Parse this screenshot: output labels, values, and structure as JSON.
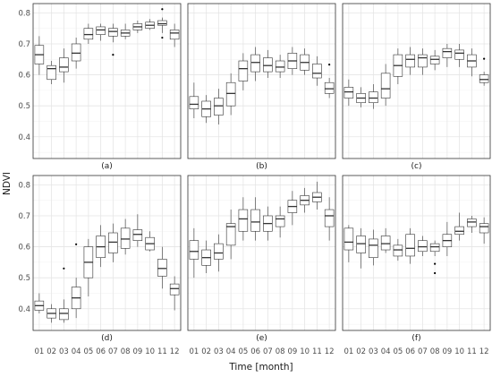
{
  "chart_data": {
    "type": "boxplot",
    "ylabel": "NDVI",
    "xlabel": "Time [month]",
    "categories": [
      "01",
      "02",
      "03",
      "04",
      "05",
      "06",
      "07",
      "08",
      "09",
      "10",
      "11",
      "12"
    ],
    "yticks": [
      0.4,
      0.5,
      0.6,
      0.7,
      0.8
    ],
    "ylim": [
      0.33,
      0.83
    ],
    "grid": true,
    "colors": {
      "panel_border": "#333333",
      "grid_major": "#e5e5e5",
      "grid_minor": "#f2f2f2",
      "box": "#333333"
    },
    "panels": [
      {
        "label": "(a)",
        "boxes": [
          {
            "min": 0.6,
            "q1": 0.635,
            "median": 0.665,
            "q3": 0.695,
            "max": 0.725,
            "outliers": []
          },
          {
            "min": 0.57,
            "q1": 0.585,
            "median": 0.62,
            "q3": 0.63,
            "max": 0.645,
            "outliers": []
          },
          {
            "min": 0.575,
            "q1": 0.61,
            "median": 0.625,
            "q3": 0.655,
            "max": 0.685,
            "outliers": []
          },
          {
            "min": 0.62,
            "q1": 0.645,
            "median": 0.67,
            "q3": 0.7,
            "max": 0.72,
            "outliers": []
          },
          {
            "min": 0.7,
            "q1": 0.715,
            "median": 0.73,
            "q3": 0.75,
            "max": 0.765,
            "outliers": []
          },
          {
            "min": 0.71,
            "q1": 0.73,
            "median": 0.745,
            "q3": 0.755,
            "max": 0.765,
            "outliers": []
          },
          {
            "min": 0.705,
            "q1": 0.725,
            "median": 0.74,
            "q3": 0.75,
            "max": 0.765,
            "outliers": [
              0.665
            ]
          },
          {
            "min": 0.715,
            "q1": 0.725,
            "median": 0.735,
            "q3": 0.745,
            "max": 0.765,
            "outliers": []
          },
          {
            "min": 0.735,
            "q1": 0.745,
            "median": 0.755,
            "q3": 0.765,
            "max": 0.775,
            "outliers": []
          },
          {
            "min": 0.745,
            "q1": 0.75,
            "median": 0.76,
            "q3": 0.77,
            "max": 0.78,
            "outliers": []
          },
          {
            "min": 0.735,
            "q1": 0.76,
            "median": 0.765,
            "q3": 0.775,
            "max": 0.785,
            "outliers": [
              0.812,
              0.72
            ]
          },
          {
            "min": 0.69,
            "q1": 0.715,
            "median": 0.735,
            "q3": 0.745,
            "max": 0.765,
            "outliers": []
          }
        ]
      },
      {
        "label": "(b)",
        "boxes": [
          {
            "min": 0.46,
            "q1": 0.49,
            "median": 0.505,
            "q3": 0.53,
            "max": 0.575,
            "outliers": []
          },
          {
            "min": 0.445,
            "q1": 0.465,
            "median": 0.49,
            "q3": 0.515,
            "max": 0.535,
            "outliers": []
          },
          {
            "min": 0.44,
            "q1": 0.47,
            "median": 0.5,
            "q3": 0.525,
            "max": 0.555,
            "outliers": []
          },
          {
            "min": 0.47,
            "q1": 0.5,
            "median": 0.54,
            "q3": 0.575,
            "max": 0.605,
            "outliers": []
          },
          {
            "min": 0.55,
            "q1": 0.58,
            "median": 0.62,
            "q3": 0.645,
            "max": 0.67,
            "outliers": []
          },
          {
            "min": 0.58,
            "q1": 0.61,
            "median": 0.64,
            "q3": 0.665,
            "max": 0.69,
            "outliers": []
          },
          {
            "min": 0.59,
            "q1": 0.61,
            "median": 0.63,
            "q3": 0.655,
            "max": 0.68,
            "outliers": []
          },
          {
            "min": 0.59,
            "q1": 0.61,
            "median": 0.625,
            "q3": 0.645,
            "max": 0.665,
            "outliers": []
          },
          {
            "min": 0.6,
            "q1": 0.62,
            "median": 0.645,
            "q3": 0.67,
            "max": 0.69,
            "outliers": []
          },
          {
            "min": 0.6,
            "q1": 0.615,
            "median": 0.64,
            "q3": 0.665,
            "max": 0.685,
            "outliers": []
          },
          {
            "min": 0.565,
            "q1": 0.59,
            "median": 0.605,
            "q3": 0.635,
            "max": 0.66,
            "outliers": []
          },
          {
            "min": 0.525,
            "q1": 0.54,
            "median": 0.555,
            "q3": 0.575,
            "max": 0.59,
            "outliers": [
              0.633
            ]
          }
        ]
      },
      {
        "label": "(c)",
        "boxes": [
          {
            "min": 0.5,
            "q1": 0.525,
            "median": 0.545,
            "q3": 0.56,
            "max": 0.585,
            "outliers": []
          },
          {
            "min": 0.495,
            "q1": 0.51,
            "median": 0.525,
            "q3": 0.54,
            "max": 0.56,
            "outliers": []
          },
          {
            "min": 0.49,
            "q1": 0.51,
            "median": 0.525,
            "q3": 0.545,
            "max": 0.57,
            "outliers": []
          },
          {
            "min": 0.5,
            "q1": 0.525,
            "median": 0.555,
            "q3": 0.605,
            "max": 0.635,
            "outliers": []
          },
          {
            "min": 0.57,
            "q1": 0.595,
            "median": 0.63,
            "q3": 0.665,
            "max": 0.685,
            "outliers": []
          },
          {
            "min": 0.6,
            "q1": 0.625,
            "median": 0.65,
            "q3": 0.665,
            "max": 0.69,
            "outliers": []
          },
          {
            "min": 0.6,
            "q1": 0.625,
            "median": 0.655,
            "q3": 0.665,
            "max": 0.685,
            "outliers": []
          },
          {
            "min": 0.615,
            "q1": 0.635,
            "median": 0.65,
            "q3": 0.66,
            "max": 0.68,
            "outliers": []
          },
          {
            "min": 0.625,
            "q1": 0.655,
            "median": 0.675,
            "q3": 0.685,
            "max": 0.7,
            "outliers": []
          },
          {
            "min": 0.625,
            "q1": 0.65,
            "median": 0.67,
            "q3": 0.68,
            "max": 0.7,
            "outliers": []
          },
          {
            "min": 0.595,
            "q1": 0.625,
            "median": 0.645,
            "q3": 0.665,
            "max": 0.685,
            "outliers": []
          },
          {
            "min": 0.565,
            "q1": 0.575,
            "median": 0.585,
            "q3": 0.6,
            "max": 0.61,
            "outliers": [
              0.652
            ]
          }
        ]
      },
      {
        "label": "(d)",
        "boxes": [
          {
            "min": 0.385,
            "q1": 0.395,
            "median": 0.41,
            "q3": 0.425,
            "max": 0.45,
            "outliers": []
          },
          {
            "min": 0.355,
            "q1": 0.37,
            "median": 0.385,
            "q3": 0.4,
            "max": 0.415,
            "outliers": []
          },
          {
            "min": 0.355,
            "q1": 0.365,
            "median": 0.385,
            "q3": 0.4,
            "max": 0.43,
            "outliers": [
              0.53
            ]
          },
          {
            "min": 0.37,
            "q1": 0.4,
            "median": 0.435,
            "q3": 0.47,
            "max": 0.5,
            "outliers": [
              0.608
            ]
          },
          {
            "min": 0.44,
            "q1": 0.5,
            "median": 0.55,
            "q3": 0.6,
            "max": 0.625,
            "outliers": []
          },
          {
            "min": 0.535,
            "q1": 0.565,
            "median": 0.6,
            "q3": 0.635,
            "max": 0.67,
            "outliers": []
          },
          {
            "min": 0.55,
            "q1": 0.58,
            "median": 0.615,
            "q3": 0.645,
            "max": 0.675,
            "outliers": []
          },
          {
            "min": 0.575,
            "q1": 0.595,
            "median": 0.625,
            "q3": 0.66,
            "max": 0.69,
            "outliers": []
          },
          {
            "min": 0.6,
            "q1": 0.62,
            "median": 0.64,
            "q3": 0.655,
            "max": 0.705,
            "outliers": []
          },
          {
            "min": 0.585,
            "q1": 0.59,
            "median": 0.61,
            "q3": 0.63,
            "max": 0.65,
            "outliers": []
          },
          {
            "min": 0.465,
            "q1": 0.505,
            "median": 0.53,
            "q3": 0.56,
            "max": 0.6,
            "outliers": []
          },
          {
            "min": 0.395,
            "q1": 0.445,
            "median": 0.465,
            "q3": 0.48,
            "max": 0.505,
            "outliers": []
          }
        ]
      },
      {
        "label": "(e)",
        "boxes": [
          {
            "min": 0.5,
            "q1": 0.56,
            "median": 0.585,
            "q3": 0.62,
            "max": 0.66,
            "outliers": []
          },
          {
            "min": 0.515,
            "q1": 0.54,
            "median": 0.565,
            "q3": 0.59,
            "max": 0.62,
            "outliers": []
          },
          {
            "min": 0.52,
            "q1": 0.56,
            "median": 0.58,
            "q3": 0.61,
            "max": 0.64,
            "outliers": []
          },
          {
            "min": 0.56,
            "q1": 0.605,
            "median": 0.665,
            "q3": 0.675,
            "max": 0.72,
            "outliers": []
          },
          {
            "min": 0.62,
            "q1": 0.65,
            "median": 0.69,
            "q3": 0.72,
            "max": 0.76,
            "outliers": []
          },
          {
            "min": 0.62,
            "q1": 0.65,
            "median": 0.68,
            "q3": 0.72,
            "max": 0.76,
            "outliers": []
          },
          {
            "min": 0.62,
            "q1": 0.65,
            "median": 0.675,
            "q3": 0.7,
            "max": 0.73,
            "outliers": []
          },
          {
            "min": 0.63,
            "q1": 0.665,
            "median": 0.69,
            "q3": 0.7,
            "max": 0.73,
            "outliers": []
          },
          {
            "min": 0.67,
            "q1": 0.71,
            "median": 0.73,
            "q3": 0.75,
            "max": 0.78,
            "outliers": []
          },
          {
            "min": 0.71,
            "q1": 0.735,
            "median": 0.75,
            "q3": 0.765,
            "max": 0.79,
            "outliers": []
          },
          {
            "min": 0.72,
            "q1": 0.745,
            "median": 0.76,
            "q3": 0.775,
            "max": 0.81,
            "outliers": []
          },
          {
            "min": 0.62,
            "q1": 0.665,
            "median": 0.7,
            "q3": 0.72,
            "max": 0.76,
            "outliers": []
          }
        ]
      },
      {
        "label": "(f)",
        "boxes": [
          {
            "min": 0.55,
            "q1": 0.59,
            "median": 0.615,
            "q3": 0.66,
            "max": 0.67,
            "outliers": []
          },
          {
            "min": 0.53,
            "q1": 0.58,
            "median": 0.61,
            "q3": 0.635,
            "max": 0.66,
            "outliers": []
          },
          {
            "min": 0.54,
            "q1": 0.565,
            "median": 0.605,
            "q3": 0.625,
            "max": 0.655,
            "outliers": []
          },
          {
            "min": 0.58,
            "q1": 0.59,
            "median": 0.61,
            "q3": 0.635,
            "max": 0.66,
            "outliers": []
          },
          {
            "min": 0.555,
            "q1": 0.57,
            "median": 0.59,
            "q3": 0.605,
            "max": 0.625,
            "outliers": []
          },
          {
            "min": 0.545,
            "q1": 0.57,
            "median": 0.595,
            "q3": 0.64,
            "max": 0.66,
            "outliers": []
          },
          {
            "min": 0.57,
            "q1": 0.585,
            "median": 0.6,
            "q3": 0.62,
            "max": 0.635,
            "outliers": []
          },
          {
            "min": 0.57,
            "q1": 0.585,
            "median": 0.6,
            "q3": 0.61,
            "max": 0.62,
            "outliers": [
              0.545,
              0.515
            ]
          },
          {
            "min": 0.57,
            "q1": 0.6,
            "median": 0.62,
            "q3": 0.64,
            "max": 0.68,
            "outliers": []
          },
          {
            "min": 0.62,
            "q1": 0.64,
            "median": 0.65,
            "q3": 0.665,
            "max": 0.71,
            "outliers": []
          },
          {
            "min": 0.645,
            "q1": 0.665,
            "median": 0.68,
            "q3": 0.69,
            "max": 0.7,
            "outliers": []
          },
          {
            "min": 0.61,
            "q1": 0.645,
            "median": 0.665,
            "q3": 0.675,
            "max": 0.695,
            "outliers": []
          }
        ]
      }
    ]
  }
}
